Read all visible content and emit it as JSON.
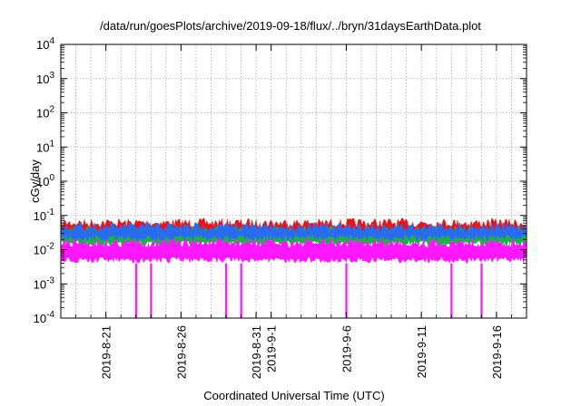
{
  "chart_data": {
    "type": "line",
    "title": "/data/run/goesPlots/archive/2019-09-18/flux/../bryn/31daysEarthData.plot",
    "xlabel": "Coordinated Universal Time (UTC)",
    "ylabel": "cGy/day",
    "yscale": "log",
    "ylim": [
      0.0001,
      10000
    ],
    "xlim": [
      "2019-08-18",
      "2019-09-18"
    ],
    "grid": true,
    "x_ticks": [
      "2019-8-21",
      "2019-8-26",
      "2019-8-31",
      "2019-9-1",
      "2019-9-6",
      "2019-9-11",
      "2019-9-16"
    ],
    "y_ticks": [
      {
        "value": 0.0001,
        "base": "10",
        "exp": "-4"
      },
      {
        "value": 0.001,
        "base": "10",
        "exp": "-3"
      },
      {
        "value": 0.01,
        "base": "10",
        "exp": "-2"
      },
      {
        "value": 0.1,
        "base": "10",
        "exp": "-1"
      },
      {
        "value": 1,
        "base": "10",
        "exp": "0"
      },
      {
        "value": 10,
        "base": "10",
        "exp": "1"
      },
      {
        "value": 100,
        "base": "10",
        "exp": "2"
      },
      {
        "value": 1000,
        "base": "10",
        "exp": "3"
      },
      {
        "value": 10000,
        "base": "10",
        "exp": "4"
      }
    ],
    "series": [
      {
        "color": "#e8141a",
        "band": [
          0.02,
          0.085
        ]
      },
      {
        "color": "#1fb04b",
        "band": [
          0.012,
          0.05
        ]
      },
      {
        "color": "#2a6cf0",
        "band": [
          0.018,
          0.065
        ]
      },
      {
        "color": "#ff18ff",
        "band": [
          0.004,
          0.022
        ]
      }
    ],
    "dips": [
      {
        "date": "2019-08-23",
        "value": 0.0001
      },
      {
        "date": "2019-08-24",
        "value": 0.0001
      },
      {
        "date": "2019-08-29",
        "value": 0.0001
      },
      {
        "date": "2019-08-30",
        "value": 0.0001
      },
      {
        "date": "2019-09-06",
        "value": 0.0001
      },
      {
        "date": "2019-09-13",
        "value": 0.0001
      },
      {
        "date": "2019-09-15",
        "value": 0.0001
      }
    ]
  }
}
